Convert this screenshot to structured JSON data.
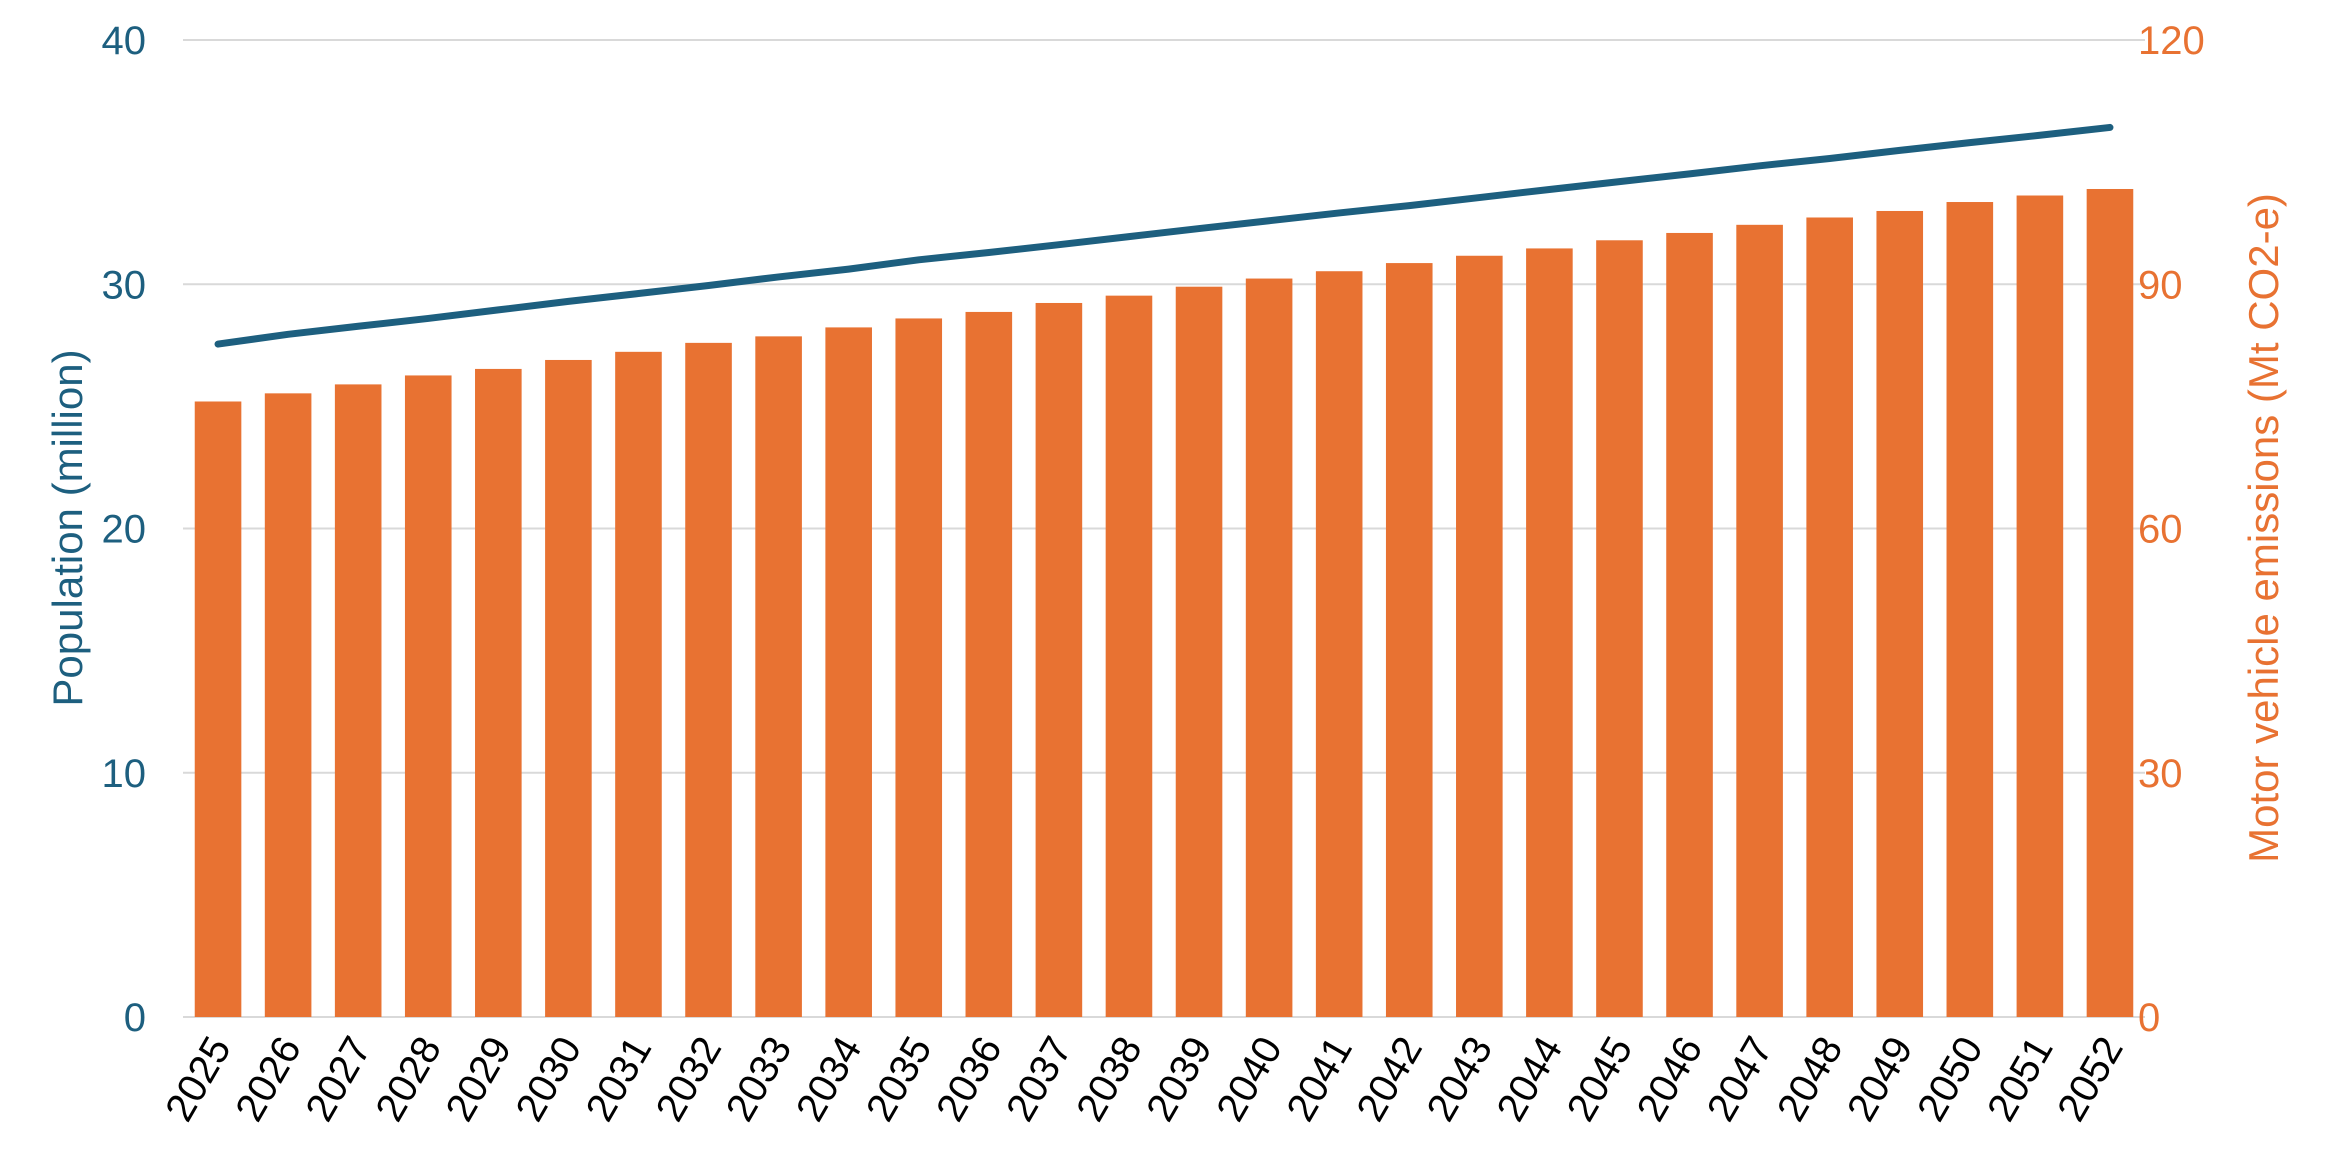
{
  "chart_data": {
    "type": "bar",
    "categories": [
      "2025",
      "2026",
      "2027",
      "2028",
      "2029",
      "2030",
      "2031",
      "2032",
      "2033",
      "2034",
      "2035",
      "2036",
      "2037",
      "2038",
      "2039",
      "2040",
      "2041",
      "2042",
      "2043",
      "2044",
      "2045",
      "2046",
      "2047",
      "2048",
      "2049",
      "2050",
      "2051",
      "2052"
    ],
    "series": [
      {
        "type": "bar",
        "axis": "right",
        "color": "#e87232",
        "values": [
          75.6,
          76.6,
          77.7,
          78.8,
          79.6,
          80.7,
          81.7,
          82.8,
          83.6,
          84.7,
          85.8,
          86.6,
          87.7,
          88.6,
          89.7,
          90.7,
          91.6,
          92.6,
          93.5,
          94.4,
          95.4,
          96.3,
          97.3,
          98.2,
          99.0,
          100.1,
          100.9,
          101.7
        ]
      },
      {
        "type": "line",
        "axis": "left",
        "color": "#1d5f7f",
        "values": [
          27.55,
          27.95,
          28.28,
          28.6,
          28.95,
          29.3,
          29.62,
          29.95,
          30.3,
          30.62,
          31.0,
          31.3,
          31.62,
          31.95,
          32.28,
          32.6,
          32.92,
          33.22,
          33.55,
          33.88,
          34.2,
          34.52,
          34.85,
          35.15,
          35.48,
          35.8,
          36.1,
          36.42
        ]
      }
    ],
    "ylabel_left": "Population (million)",
    "ylabel_right": "Motor vehicle emissions (Mt CO2-e)",
    "ylim_left": [
      0,
      40
    ],
    "ylim_right": [
      0,
      120
    ],
    "yticks_left": [
      "0",
      "10",
      "20",
      "30",
      "40"
    ],
    "yticks_right": [
      "0",
      "30",
      "60",
      "90",
      "120"
    ],
    "grid": true,
    "legend": "none"
  }
}
